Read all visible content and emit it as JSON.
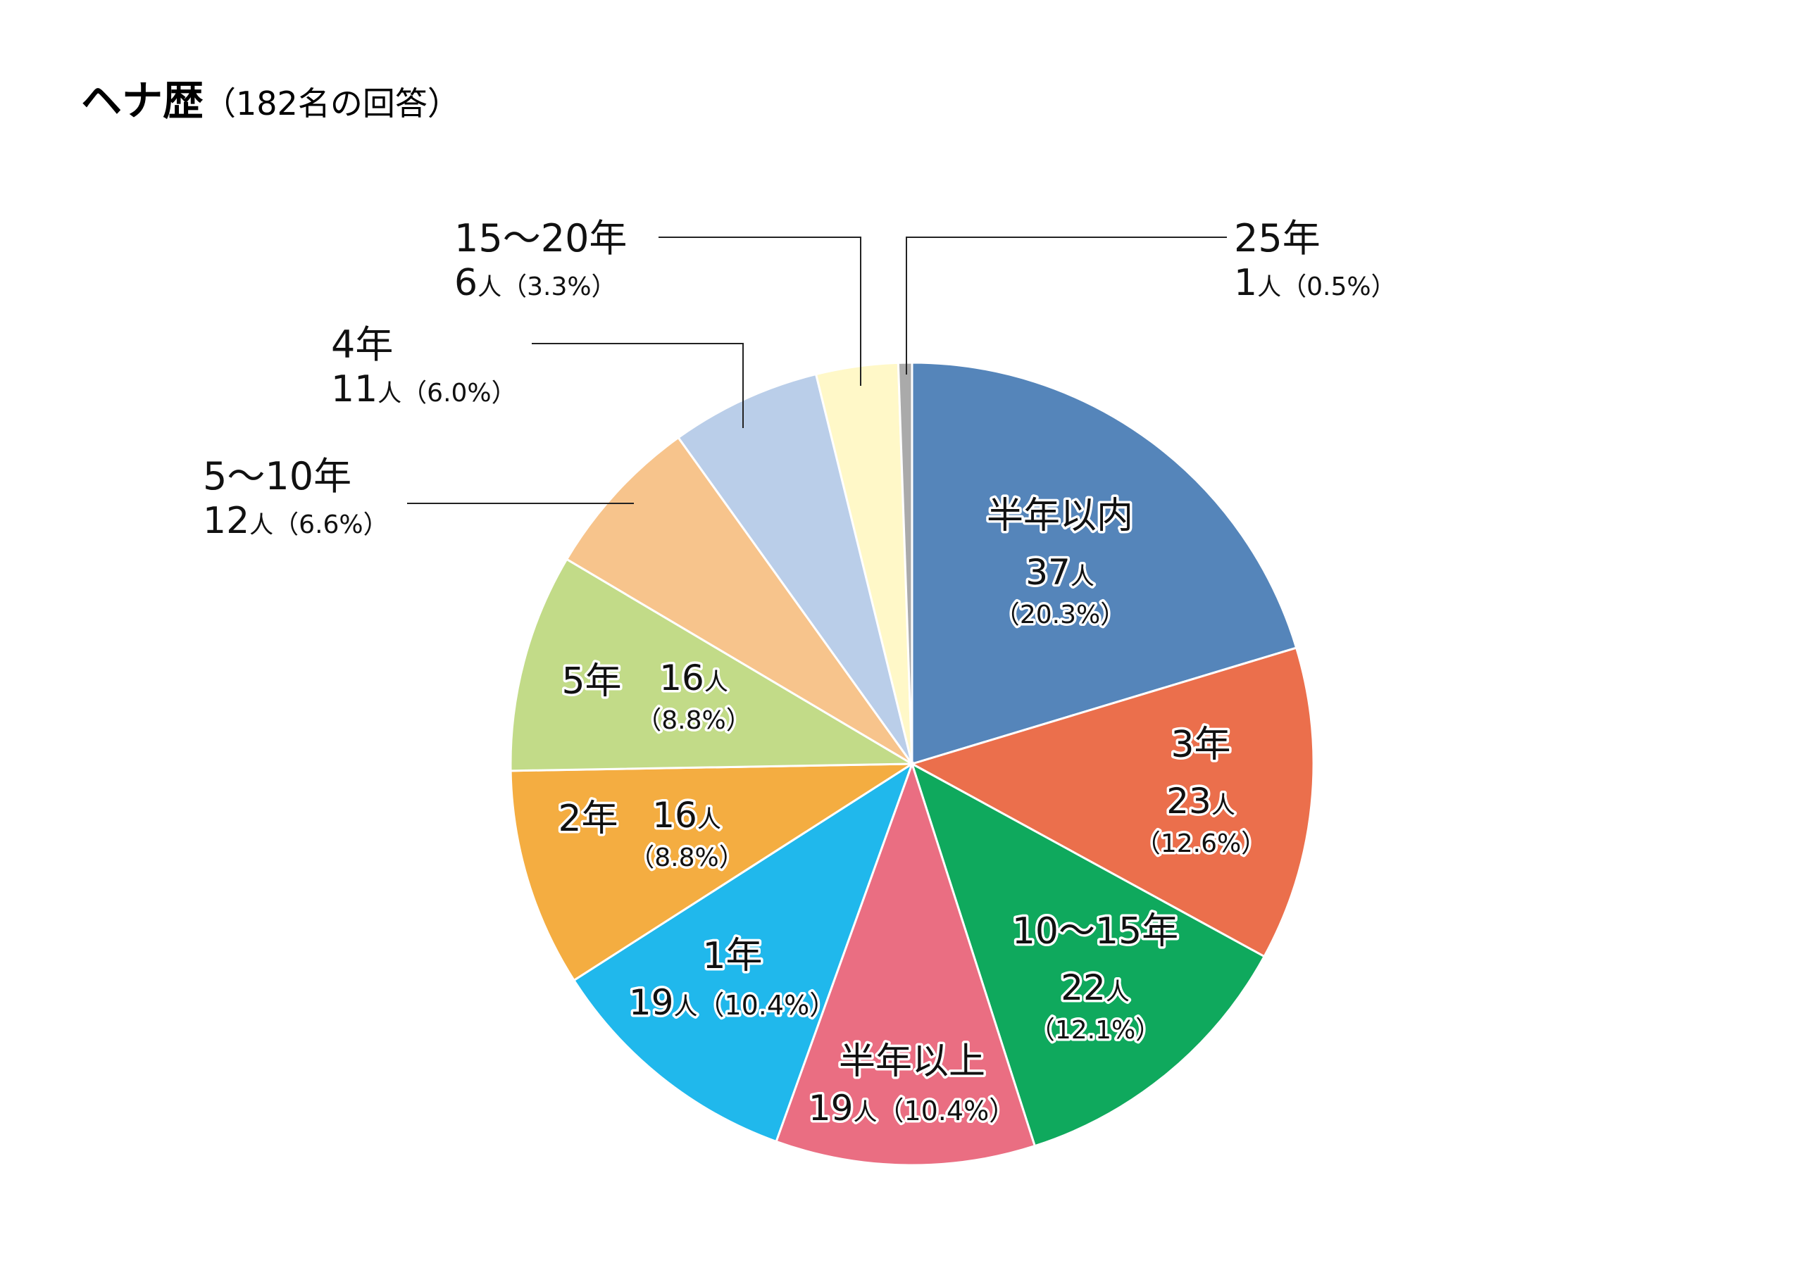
{
  "title": {
    "main": "ヘナ歴",
    "sub": "（182名の回答）"
  },
  "chart_data": {
    "type": "pie",
    "title": "ヘナ歴（182名の回答）",
    "unit": "人",
    "slices": [
      {
        "label": "半年以内",
        "value": 37,
        "percent": "20.3%",
        "color": "#5585BA"
      },
      {
        "label": "3年",
        "value": 23,
        "percent": "12.6%",
        "color": "#EB6F4C"
      },
      {
        "label": "10〜15年",
        "value": 22,
        "percent": "12.1%",
        "color": "#0FA95D"
      },
      {
        "label": "半年以上",
        "value": 19,
        "percent": "10.4%",
        "color": "#EA6E82"
      },
      {
        "label": "1年",
        "value": 19,
        "percent": "10.4%",
        "color": "#20B8EC"
      },
      {
        "label": "2年",
        "value": 16,
        "percent": "8.8%",
        "color": "#F4AD41"
      },
      {
        "label": "5年",
        "value": 16,
        "percent": "8.8%",
        "color": "#C2DB88"
      },
      {
        "label": "5〜10年",
        "value": 12,
        "percent": "6.6%",
        "color": "#F7C48C"
      },
      {
        "label": "4年",
        "value": 11,
        "percent": "6.0%",
        "color": "#BACEE9"
      },
      {
        "label": "15〜20年",
        "value": 6,
        "percent": "3.3%",
        "color": "#FFF8C8"
      },
      {
        "label": "25年",
        "value": 1,
        "percent": "0.5%",
        "color": "#AAAAAA"
      }
    ]
  }
}
